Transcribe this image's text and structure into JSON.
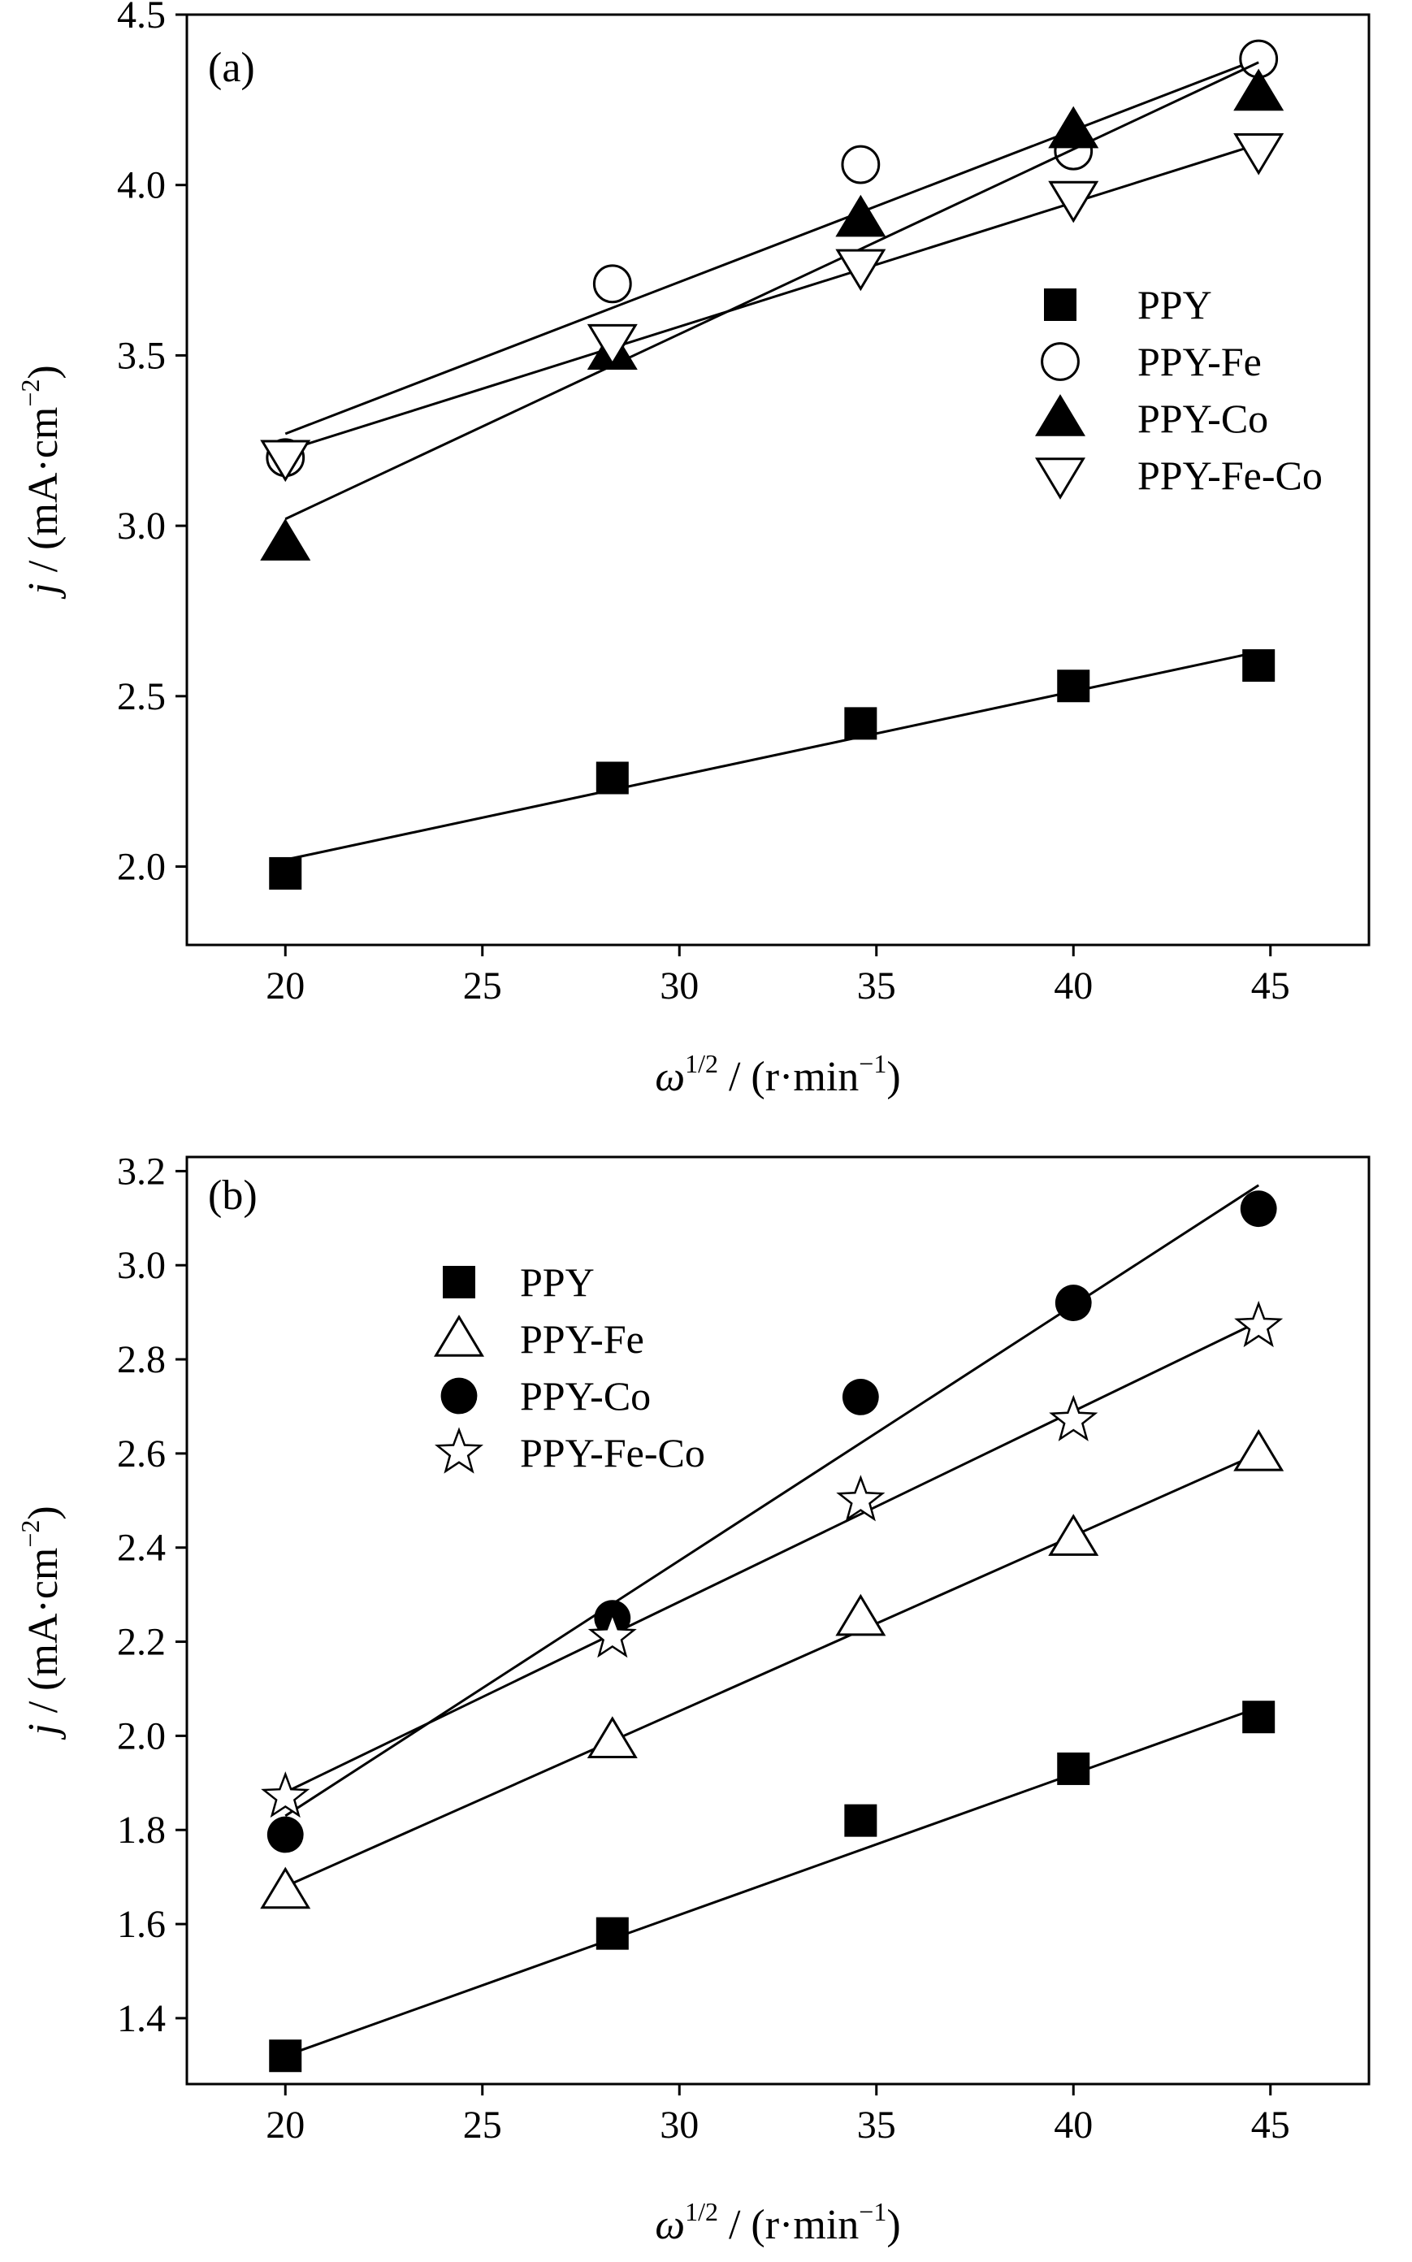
{
  "chart_data": [
    {
      "type": "scatter",
      "panel_label": "(a)",
      "xlabel": "ω1/2 / (r·min−1)",
      "ylabel": "j / (mA·cm−2)",
      "xlim": [
        17.5,
        47.5
      ],
      "ylim": [
        1.77,
        4.5
      ],
      "x_ticks": [
        "20",
        "25",
        "30",
        "35",
        "40",
        "45"
      ],
      "y_ticks": [
        "2.0",
        "2.5",
        "3.0",
        "3.5",
        "4.0",
        "4.5"
      ],
      "legend_position": "middle-right",
      "series": [
        {
          "name": "PPY",
          "marker": "square-filled",
          "x": [
            20,
            28.3,
            34.6,
            40,
            44.7
          ],
          "y": [
            1.98,
            2.26,
            2.42,
            2.53,
            2.59
          ],
          "fit": [
            2.02,
            2.63
          ]
        },
        {
          "name": "PPY-Fe",
          "marker": "circle-open",
          "x": [
            20,
            28.3,
            34.6,
            40,
            44.7
          ],
          "y": [
            3.2,
            3.71,
            4.06,
            4.1,
            4.37
          ],
          "fit": [
            3.27,
            4.37
          ]
        },
        {
          "name": "PPY-Co",
          "marker": "triangle-up-filled",
          "x": [
            20,
            28.3,
            34.6,
            40,
            44.7
          ],
          "y": [
            2.95,
            3.51,
            3.9,
            4.16,
            4.27
          ],
          "fit": [
            3.02,
            4.36
          ]
        },
        {
          "name": "PPY-Fe-Co",
          "marker": "triangle-down-open",
          "x": [
            20,
            28.3,
            34.6,
            40,
            44.7
          ],
          "y": [
            3.2,
            3.54,
            3.76,
            3.96,
            4.1
          ],
          "fit": [
            3.22,
            4.12
          ]
        }
      ]
    },
    {
      "type": "scatter",
      "panel_label": "(b)",
      "xlabel": "ω1/2 / (r·min−1)",
      "ylabel": "j / (mA·cm−2)",
      "xlim": [
        17.5,
        47.5
      ],
      "ylim": [
        1.26,
        3.23
      ],
      "x_ticks": [
        "20",
        "25",
        "30",
        "35",
        "40",
        "45"
      ],
      "y_ticks": [
        "1.4",
        "1.6",
        "1.8",
        "2.0",
        "2.2",
        "2.4",
        "2.6",
        "2.8",
        "3.0",
        "3.2"
      ],
      "legend_position": "top-left",
      "series": [
        {
          "name": "PPY",
          "marker": "square-filled",
          "x": [
            20,
            28.3,
            34.6,
            40,
            44.7
          ],
          "y": [
            1.32,
            1.58,
            1.82,
            1.93,
            2.04
          ],
          "fit": [
            1.32,
            2.06
          ]
        },
        {
          "name": "PPY-Fe",
          "marker": "triangle-up-open",
          "x": [
            20,
            28.3,
            34.6,
            40,
            44.7
          ],
          "y": [
            1.67,
            1.99,
            2.25,
            2.42,
            2.6
          ],
          "fit": [
            1.68,
            2.6
          ]
        },
        {
          "name": "PPY-Co",
          "marker": "circle-filled",
          "x": [
            20,
            28.3,
            34.6,
            40,
            44.7
          ],
          "y": [
            1.79,
            2.25,
            2.72,
            2.92,
            3.12
          ],
          "fit": [
            1.83,
            3.17
          ]
        },
        {
          "name": "PPY-Fe-Co",
          "marker": "star-open",
          "x": [
            20,
            28.3,
            34.6,
            40,
            44.7
          ],
          "y": [
            1.87,
            2.21,
            2.5,
            2.67,
            2.87
          ],
          "fit": [
            1.88,
            2.88
          ]
        }
      ]
    }
  ]
}
